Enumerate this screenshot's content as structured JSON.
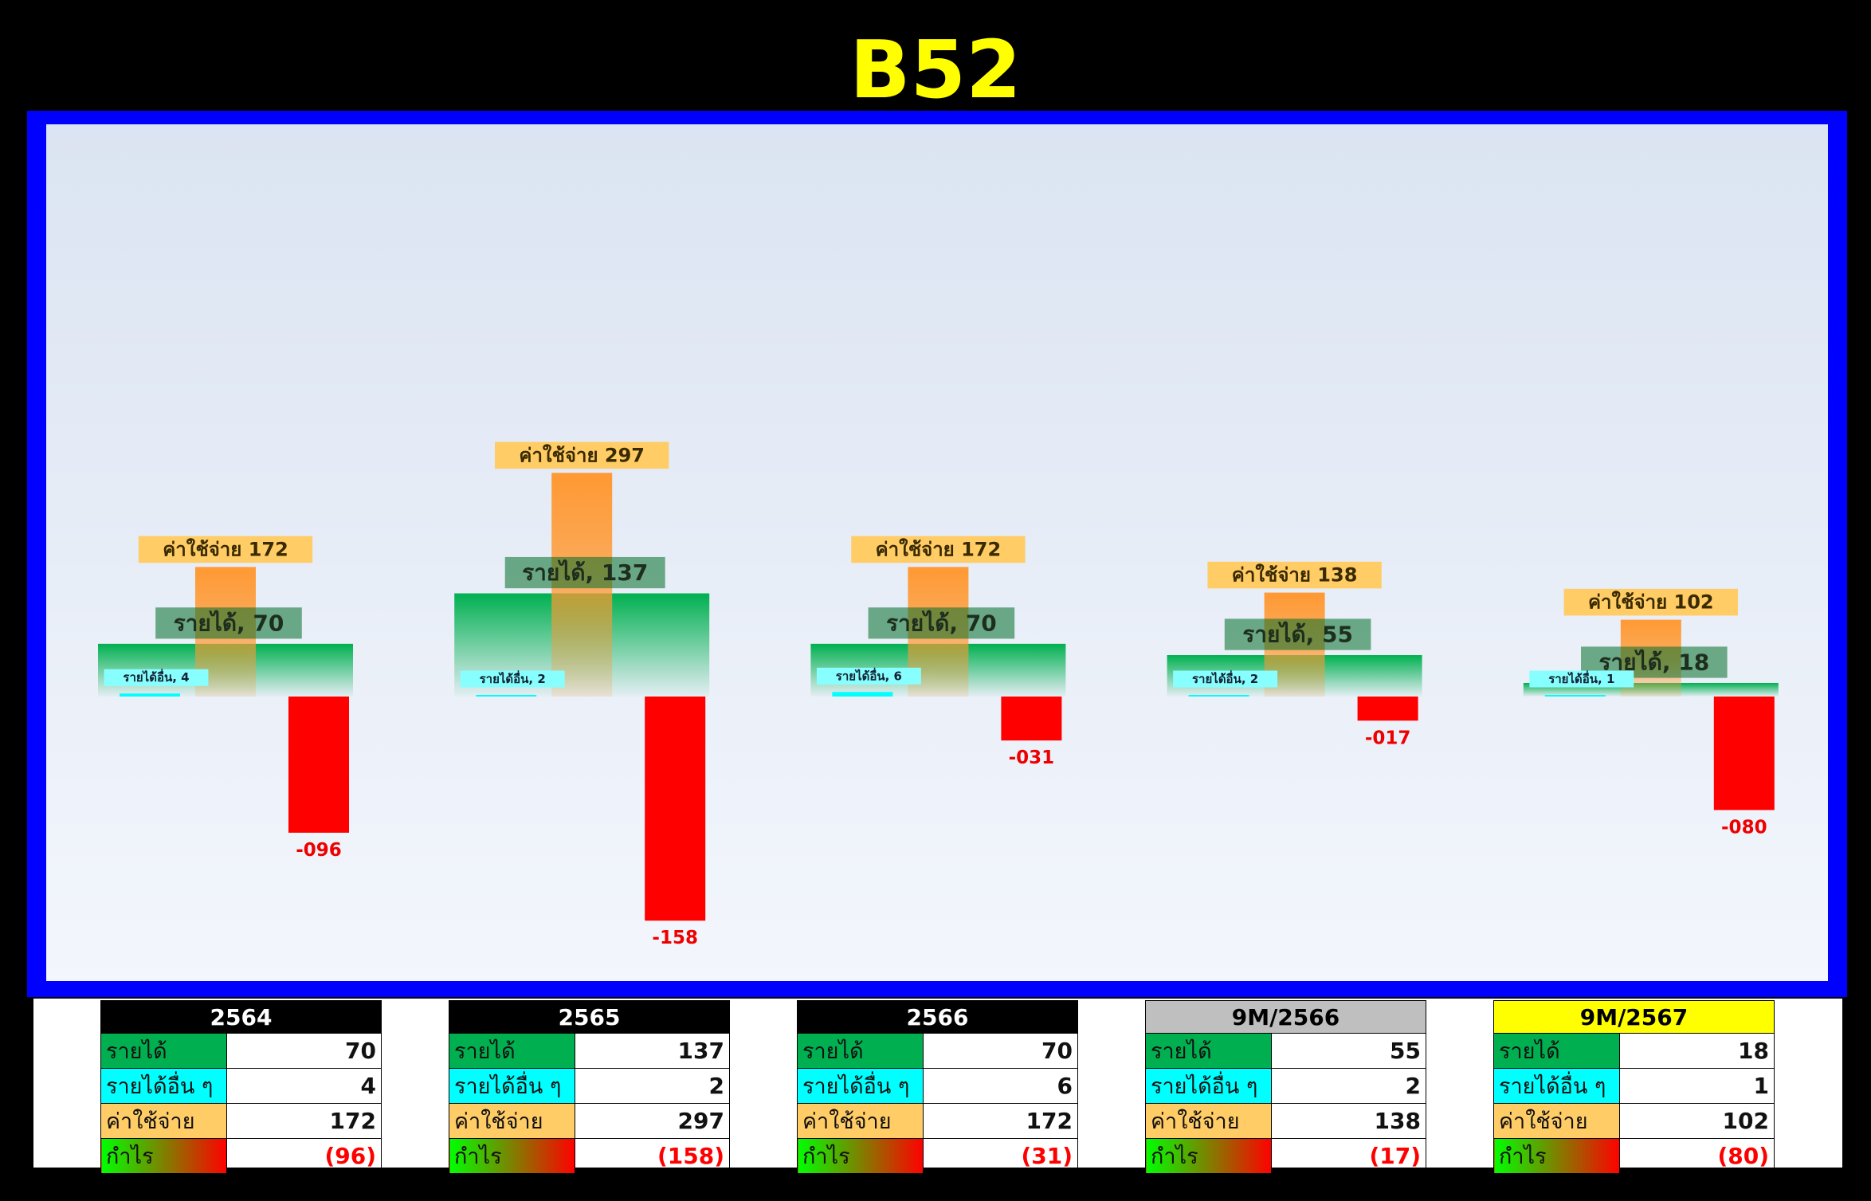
{
  "title": "B52",
  "colors": {
    "revenue": "#00b050",
    "other_income": "#00ffff",
    "expense": "#ff9933",
    "profit": "#ff0000",
    "title": "#ffff00",
    "frame": "#0000ff"
  },
  "chart_data": {
    "type": "bar",
    "categories": [
      "2564",
      "2565",
      "2566",
      "9M/2566",
      "9M/2567"
    ],
    "series": [
      {
        "name": "รายได้",
        "values": [
          70,
          137,
          70,
          55,
          18
        ]
      },
      {
        "name": "รายได้อื่น",
        "values": [
          4,
          2,
          6,
          2,
          1
        ]
      },
      {
        "name": "ค่าใช้จ่าย",
        "values": [
          172,
          297,
          172,
          138,
          102
        ]
      },
      {
        "name": "กำไร",
        "values": [
          -96,
          -158,
          -31,
          -17,
          -80
        ]
      }
    ],
    "labels": {
      "revenue": [
        "รายได้, 70",
        "รายได้, 137",
        "รายได้, 70",
        "รายได้, 55",
        "รายได้, 18"
      ],
      "other_income": [
        "รายได้อื่น, 4",
        "รายได้อื่น, 2",
        "รายได้อื่น, 6",
        "รายได้อื่น, 2",
        "รายได้อื่น, 1"
      ],
      "expense": [
        "ค่าใช้จ่าย 172",
        "ค่าใช้จ่าย 297",
        "ค่าใช้จ่าย 172",
        "ค่าใช้จ่าย 138",
        "ค่าใช้จ่าย 102"
      ],
      "profit": [
        "-096",
        "-158",
        "-031",
        "-017",
        "-080"
      ]
    }
  },
  "tables": [
    {
      "header": "2564",
      "header_bg": "#000000",
      "header_color": "#ffffff",
      "rows": [
        {
          "label": "รายได้",
          "value": "70"
        },
        {
          "label": "รายได้อื่น ๆ",
          "value": "4"
        },
        {
          "label": "ค่าใช้จ่าย",
          "value": "172"
        },
        {
          "label": "กำไร",
          "value": "(96)"
        }
      ]
    },
    {
      "header": "2565",
      "header_bg": "#000000",
      "header_color": "#ffffff",
      "rows": [
        {
          "label": "รายได้",
          "value": "137"
        },
        {
          "label": "รายได้อื่น ๆ",
          "value": "2"
        },
        {
          "label": "ค่าใช้จ่าย",
          "value": "297"
        },
        {
          "label": "กำไร",
          "value": "(158)"
        }
      ]
    },
    {
      "header": "2566",
      "header_bg": "#000000",
      "header_color": "#ffffff",
      "rows": [
        {
          "label": "รายได้",
          "value": "70"
        },
        {
          "label": "รายได้อื่น ๆ",
          "value": "6"
        },
        {
          "label": "ค่าใช้จ่าย",
          "value": "172"
        },
        {
          "label": "กำไร",
          "value": "(31)"
        }
      ]
    },
    {
      "header": "9M/2566",
      "header_bg": "#bfbfbf",
      "header_color": "#000000",
      "rows": [
        {
          "label": "รายได้",
          "value": "55"
        },
        {
          "label": "รายได้อื่น ๆ",
          "value": "2"
        },
        {
          "label": "ค่าใช้จ่าย",
          "value": "138"
        },
        {
          "label": "กำไร",
          "value": "(17)"
        }
      ]
    },
    {
      "header": "9M/2567",
      "header_bg": "#ffff00",
      "header_color": "#000000",
      "rows": [
        {
          "label": "รายได้",
          "value": "18"
        },
        {
          "label": "รายได้อื่น ๆ",
          "value": "1"
        },
        {
          "label": "ค่าใช้จ่าย",
          "value": "102"
        },
        {
          "label": "กำไร",
          "value": "(80)"
        }
      ]
    }
  ]
}
